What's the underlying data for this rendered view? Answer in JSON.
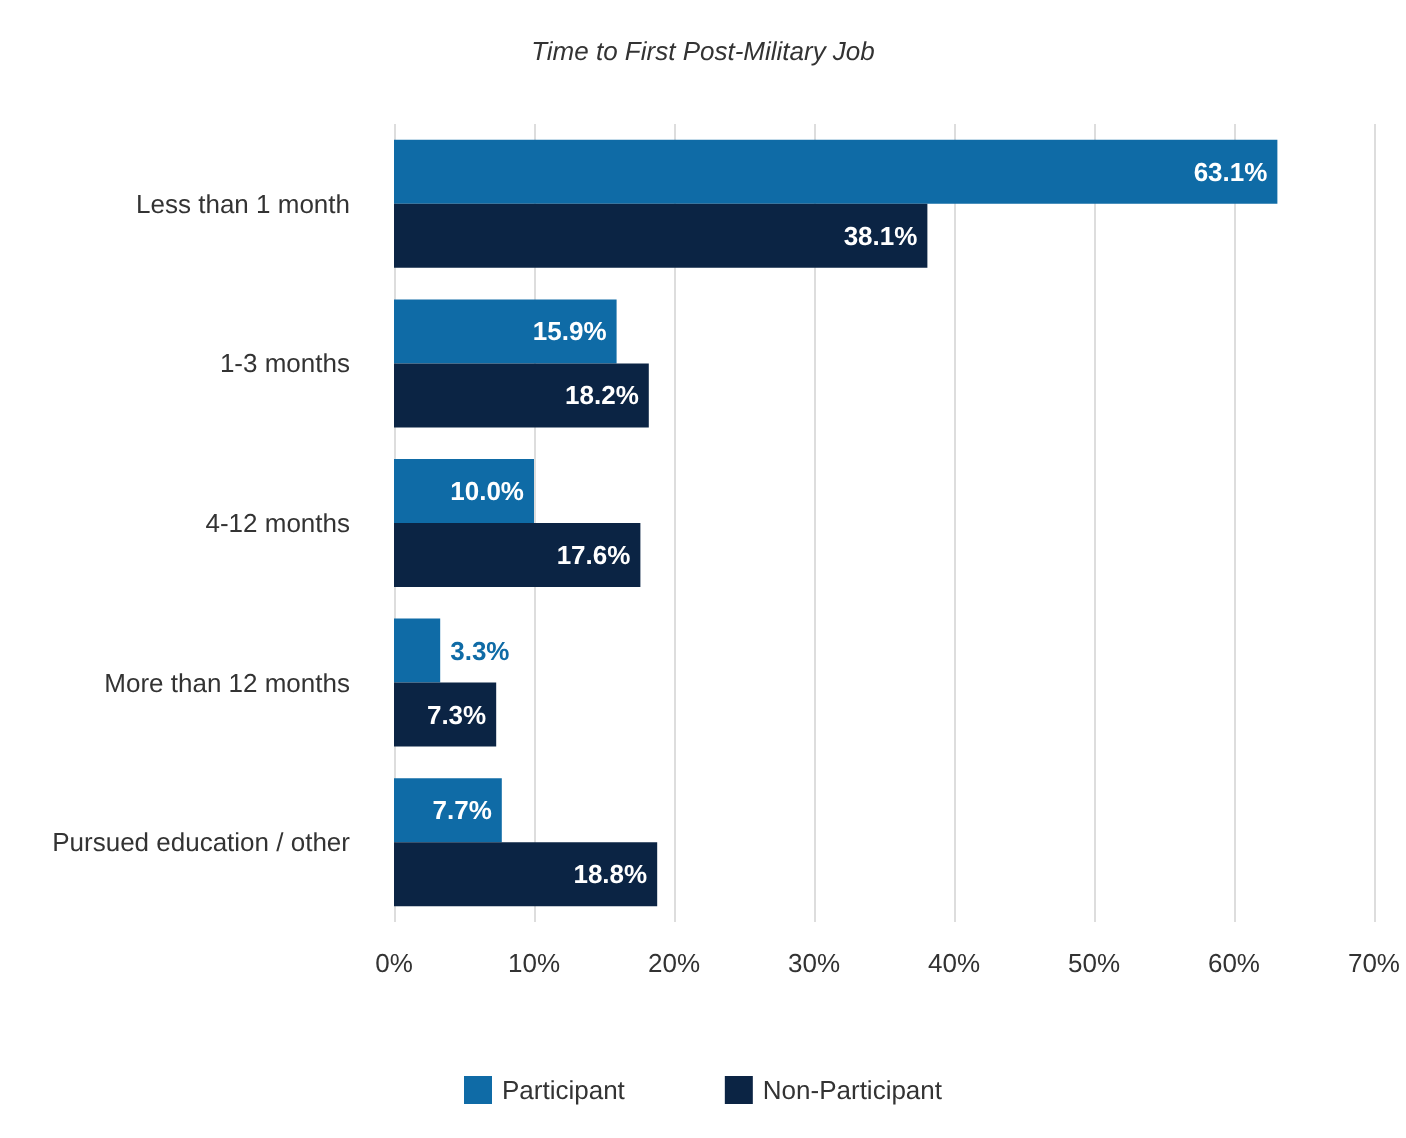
{
  "chart_data": {
    "type": "bar",
    "orientation": "horizontal",
    "title": "Time to First Post-Military Job",
    "categories": [
      "Less than 1 month",
      "1-3 months",
      "4-12 months",
      "More than 12 months",
      "Pursued education / other"
    ],
    "series": [
      {
        "name": "Participant",
        "color": "#0f6ba6",
        "values": [
          63.1,
          15.9,
          10.0,
          3.3,
          7.7
        ],
        "value_labels": [
          "63.1%",
          "15.9%",
          "10.0%",
          "3.3%",
          "7.7%"
        ]
      },
      {
        "name": "Non-Participant",
        "color": "#0b2444",
        "values": [
          38.1,
          18.2,
          17.6,
          7.3,
          18.8
        ],
        "value_labels": [
          "38.1%",
          "18.2%",
          "17.6%",
          "7.3%",
          "18.8%"
        ]
      }
    ],
    "xlim": [
      0,
      70
    ],
    "xticks": [
      {
        "value": 0,
        "label": "0%"
      },
      {
        "value": 10,
        "label": "10%"
      },
      {
        "value": 20,
        "label": "20%"
      },
      {
        "value": 30,
        "label": "30%"
      },
      {
        "value": 40,
        "label": "40%"
      },
      {
        "value": 50,
        "label": "50%"
      },
      {
        "value": 60,
        "label": "60%"
      },
      {
        "value": 70,
        "label": "70%"
      }
    ],
    "grid": "x",
    "legend": "bottom"
  }
}
